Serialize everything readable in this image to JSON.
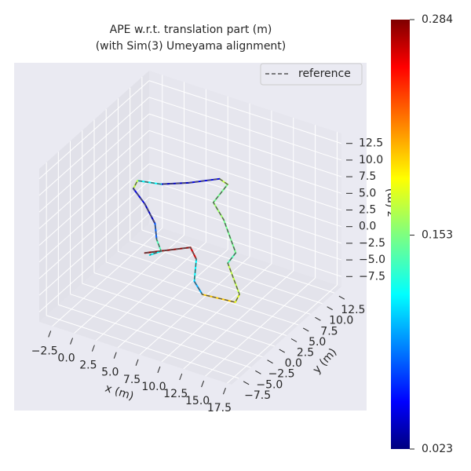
{
  "chart_data": {
    "type": "line3d",
    "title": "APE w.r.t. translation part (m)",
    "subtitle": "(with Sim(3) Umeyama alignment)",
    "xlabel": "x (m)",
    "ylabel": "y (m)",
    "zlabel": "z (m)",
    "xlim": [
      -4,
      18
    ],
    "ylim": [
      -9,
      14
    ],
    "zlim": [
      -9,
      14
    ],
    "xticks": [
      {
        "value": -2.5,
        "label": "−2.5"
      },
      {
        "value": 0,
        "label": "0.0"
      },
      2.5,
      {
        "value": 5,
        "label": "5.0"
      },
      7.5,
      {
        "value": 10,
        "label": "10.0"
      },
      12.5,
      {
        "value": 15,
        "label": "15.0"
      },
      17.5
    ],
    "yticks": [
      {
        "value": -7.5,
        "label": "−7.5"
      },
      {
        "value": -5,
        "label": "−5.0"
      },
      {
        "value": -2.5,
        "label": "−2.5"
      },
      {
        "value": 0,
        "label": "0.0"
      },
      2.5,
      {
        "value": 5,
        "label": "5.0"
      },
      7.5,
      {
        "value": 10,
        "label": "10.0"
      },
      12.5
    ],
    "zticks": [
      {
        "value": -7.5,
        "label": "−7.5"
      },
      {
        "value": -5,
        "label": "−5.0"
      },
      {
        "value": -2.5,
        "label": "−2.5"
      },
      {
        "value": 0,
        "label": "0.0"
      },
      2.5,
      {
        "value": 5,
        "label": "5.0"
      },
      7.5,
      {
        "value": 10,
        "label": "10.0"
      },
      12.5
    ],
    "grid": true,
    "legend": "upper right",
    "colormap": "jet",
    "clim": [
      0.023,
      0.284
    ],
    "cticks": [
      0.023,
      0.153,
      0.284
    ],
    "reference": {
      "name": "reference",
      "color": "#555555",
      "linestyle": "dashed",
      "x": [
        6.5,
        9.8,
        11.4,
        13.3,
        15.2,
        18.7,
        18.3,
        14.4,
        14.1,
        10.0,
        7.5,
        7.0,
        5.8,
        3.6,
        1.4,
        -0.9,
        -0.5,
        1.9,
        4.6,
        6.2,
        7.7,
        7.1
      ],
      "y": [
        -6.1,
        -2.6,
        -4.3,
        -8.2,
        -10.0,
        -9.5,
        -7.9,
        -3.2,
        -1.0,
        4.0,
        6.4,
        10.3,
        10.8,
        8.4,
        6.6,
        5.9,
        4.3,
        2.3,
        -0.5,
        -3.1,
        -4.9,
        -6.2
      ],
      "z": [
        4,
        4,
        4,
        4,
        4,
        4,
        4,
        4,
        4,
        4,
        4,
        4,
        4,
        4,
        4,
        4,
        4,
        4,
        4,
        4,
        4,
        4
      ]
    },
    "estimate": {
      "x": [
        6.5,
        9.8,
        11.4,
        13.3,
        15.2,
        18.7,
        18.3,
        14.4,
        14.1,
        10.0,
        7.5,
        7.0,
        5.8,
        3.6,
        1.4,
        -0.9,
        -0.5,
        1.9,
        4.6,
        6.2,
        7.7,
        7.1
      ],
      "y": [
        -6.1,
        -2.6,
        -4.3,
        -8.2,
        -10.0,
        -9.5,
        -7.9,
        -3.2,
        -1.0,
        4.0,
        6.4,
        10.3,
        10.8,
        8.4,
        6.6,
        5.9,
        4.3,
        2.3,
        -0.5,
        -3.1,
        -4.9,
        -6.2
      ],
      "z": [
        4,
        4,
        4,
        4,
        4,
        4,
        4,
        4,
        4,
        4,
        4,
        4,
        4,
        4,
        4,
        4,
        4,
        4,
        4,
        4,
        4,
        4
      ],
      "error": [
        0.28,
        0.26,
        0.12,
        0.1,
        0.2,
        0.18,
        0.17,
        0.14,
        0.15,
        0.16,
        0.15,
        0.17,
        0.05,
        0.04,
        0.12,
        0.17,
        0.05,
        0.04,
        0.08,
        0.14,
        0.12,
        0.25
      ]
    }
  }
}
